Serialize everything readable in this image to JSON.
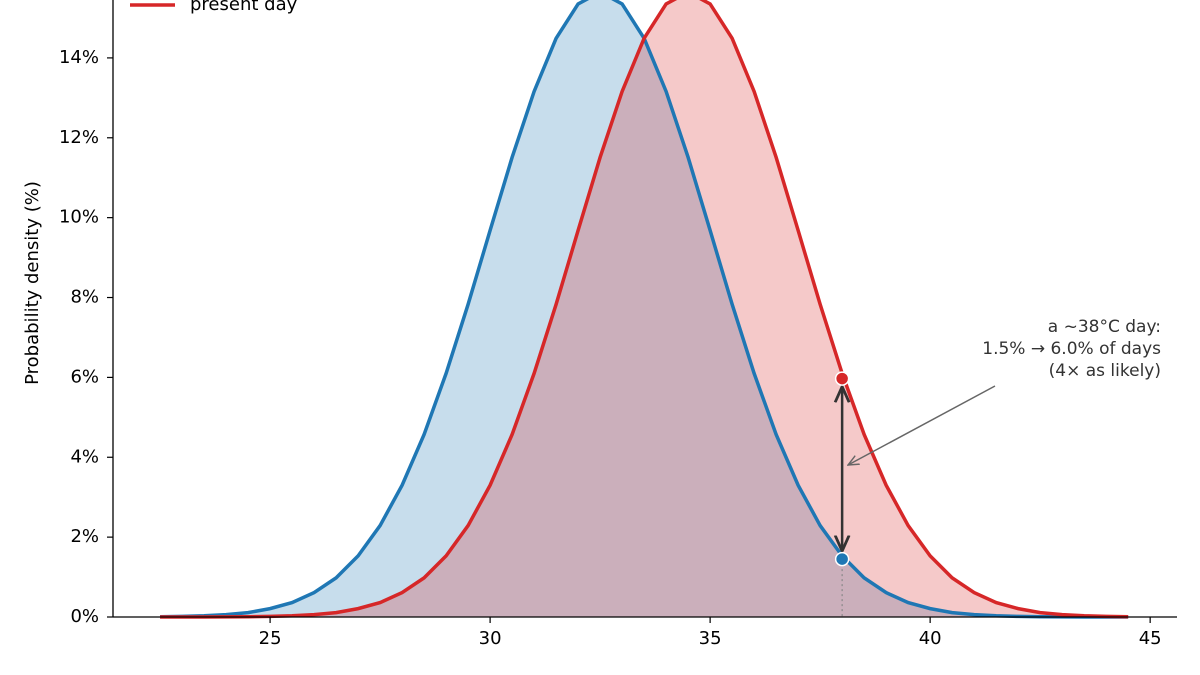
{
  "chart_data": {
    "type": "area",
    "ylabel": "Probability density (%)",
    "x": [
      22.5,
      23,
      23.5,
      24,
      24.5,
      25,
      25.5,
      26,
      26.5,
      27,
      27.5,
      28,
      28.5,
      29,
      29.5,
      30,
      30.5,
      31,
      31.5,
      32,
      32.5,
      33,
      33.5,
      34,
      34.5,
      35,
      35.5,
      36,
      36.5,
      37,
      37.5,
      38,
      38.5,
      39,
      39.5,
      40,
      40.5,
      41,
      41.5,
      42,
      42.5,
      43,
      43.5,
      44,
      44.5
    ],
    "series": [
      {
        "color": "#1f77b4",
        "values": [
          0.007,
          0.015,
          0.03,
          0.06,
          0.11,
          0.21,
          0.36,
          0.61,
          0.98,
          1.53,
          2.29,
          3.3,
          4.57,
          6.1,
          7.83,
          9.68,
          11.51,
          13.16,
          14.49,
          15.35,
          15.65,
          15.35,
          14.49,
          13.16,
          11.51,
          9.68,
          7.83,
          6.1,
          4.57,
          3.3,
          2.29,
          1.53,
          0.98,
          0.61,
          0.36,
          0.21,
          0.11,
          0.06,
          0.03,
          0.015,
          0.007,
          0.003,
          0.0014,
          0.0006,
          0.0002
        ]
      },
      {
        "name": "present day",
        "color": "#d62728",
        "values": [
          0.0002,
          0.0006,
          0.0014,
          0.003,
          0.007,
          0.015,
          0.03,
          0.06,
          0.11,
          0.21,
          0.36,
          0.61,
          0.98,
          1.53,
          2.29,
          3.3,
          4.57,
          6.1,
          7.83,
          9.68,
          11.51,
          13.16,
          14.49,
          15.35,
          15.65,
          15.35,
          14.49,
          13.16,
          11.51,
          9.68,
          7.83,
          6.1,
          4.57,
          3.3,
          2.29,
          1.53,
          0.98,
          0.61,
          0.36,
          0.21,
          0.11,
          0.06,
          0.03,
          0.015,
          0.007
        ]
      }
    ],
    "markers": [
      {
        "x": 38,
        "y": 1.45,
        "color": "#1f77b4"
      },
      {
        "x": 38,
        "y": 5.97,
        "color": "#d62728"
      }
    ],
    "annotation": [
      "a ~38°C day:",
      "1.5% → 6.0% of days",
      "(4× as likely)"
    ],
    "xlim": [
      21.43,
      45.61
    ],
    "ylim": [
      0,
      15.45
    ],
    "xticks": [
      25,
      30,
      35,
      40,
      45
    ],
    "yticks": [
      {
        "value": 0,
        "label": "0%"
      },
      {
        "value": 2,
        "label": "2%"
      },
      {
        "value": 4,
        "label": "4%"
      },
      {
        "value": 6,
        "label": "6%"
      },
      {
        "value": 8,
        "label": "8%"
      },
      {
        "value": 10,
        "label": "10%"
      },
      {
        "value": 12,
        "label": "12%"
      },
      {
        "value": 14,
        "label": "14%"
      }
    ],
    "legend": "upper left"
  }
}
